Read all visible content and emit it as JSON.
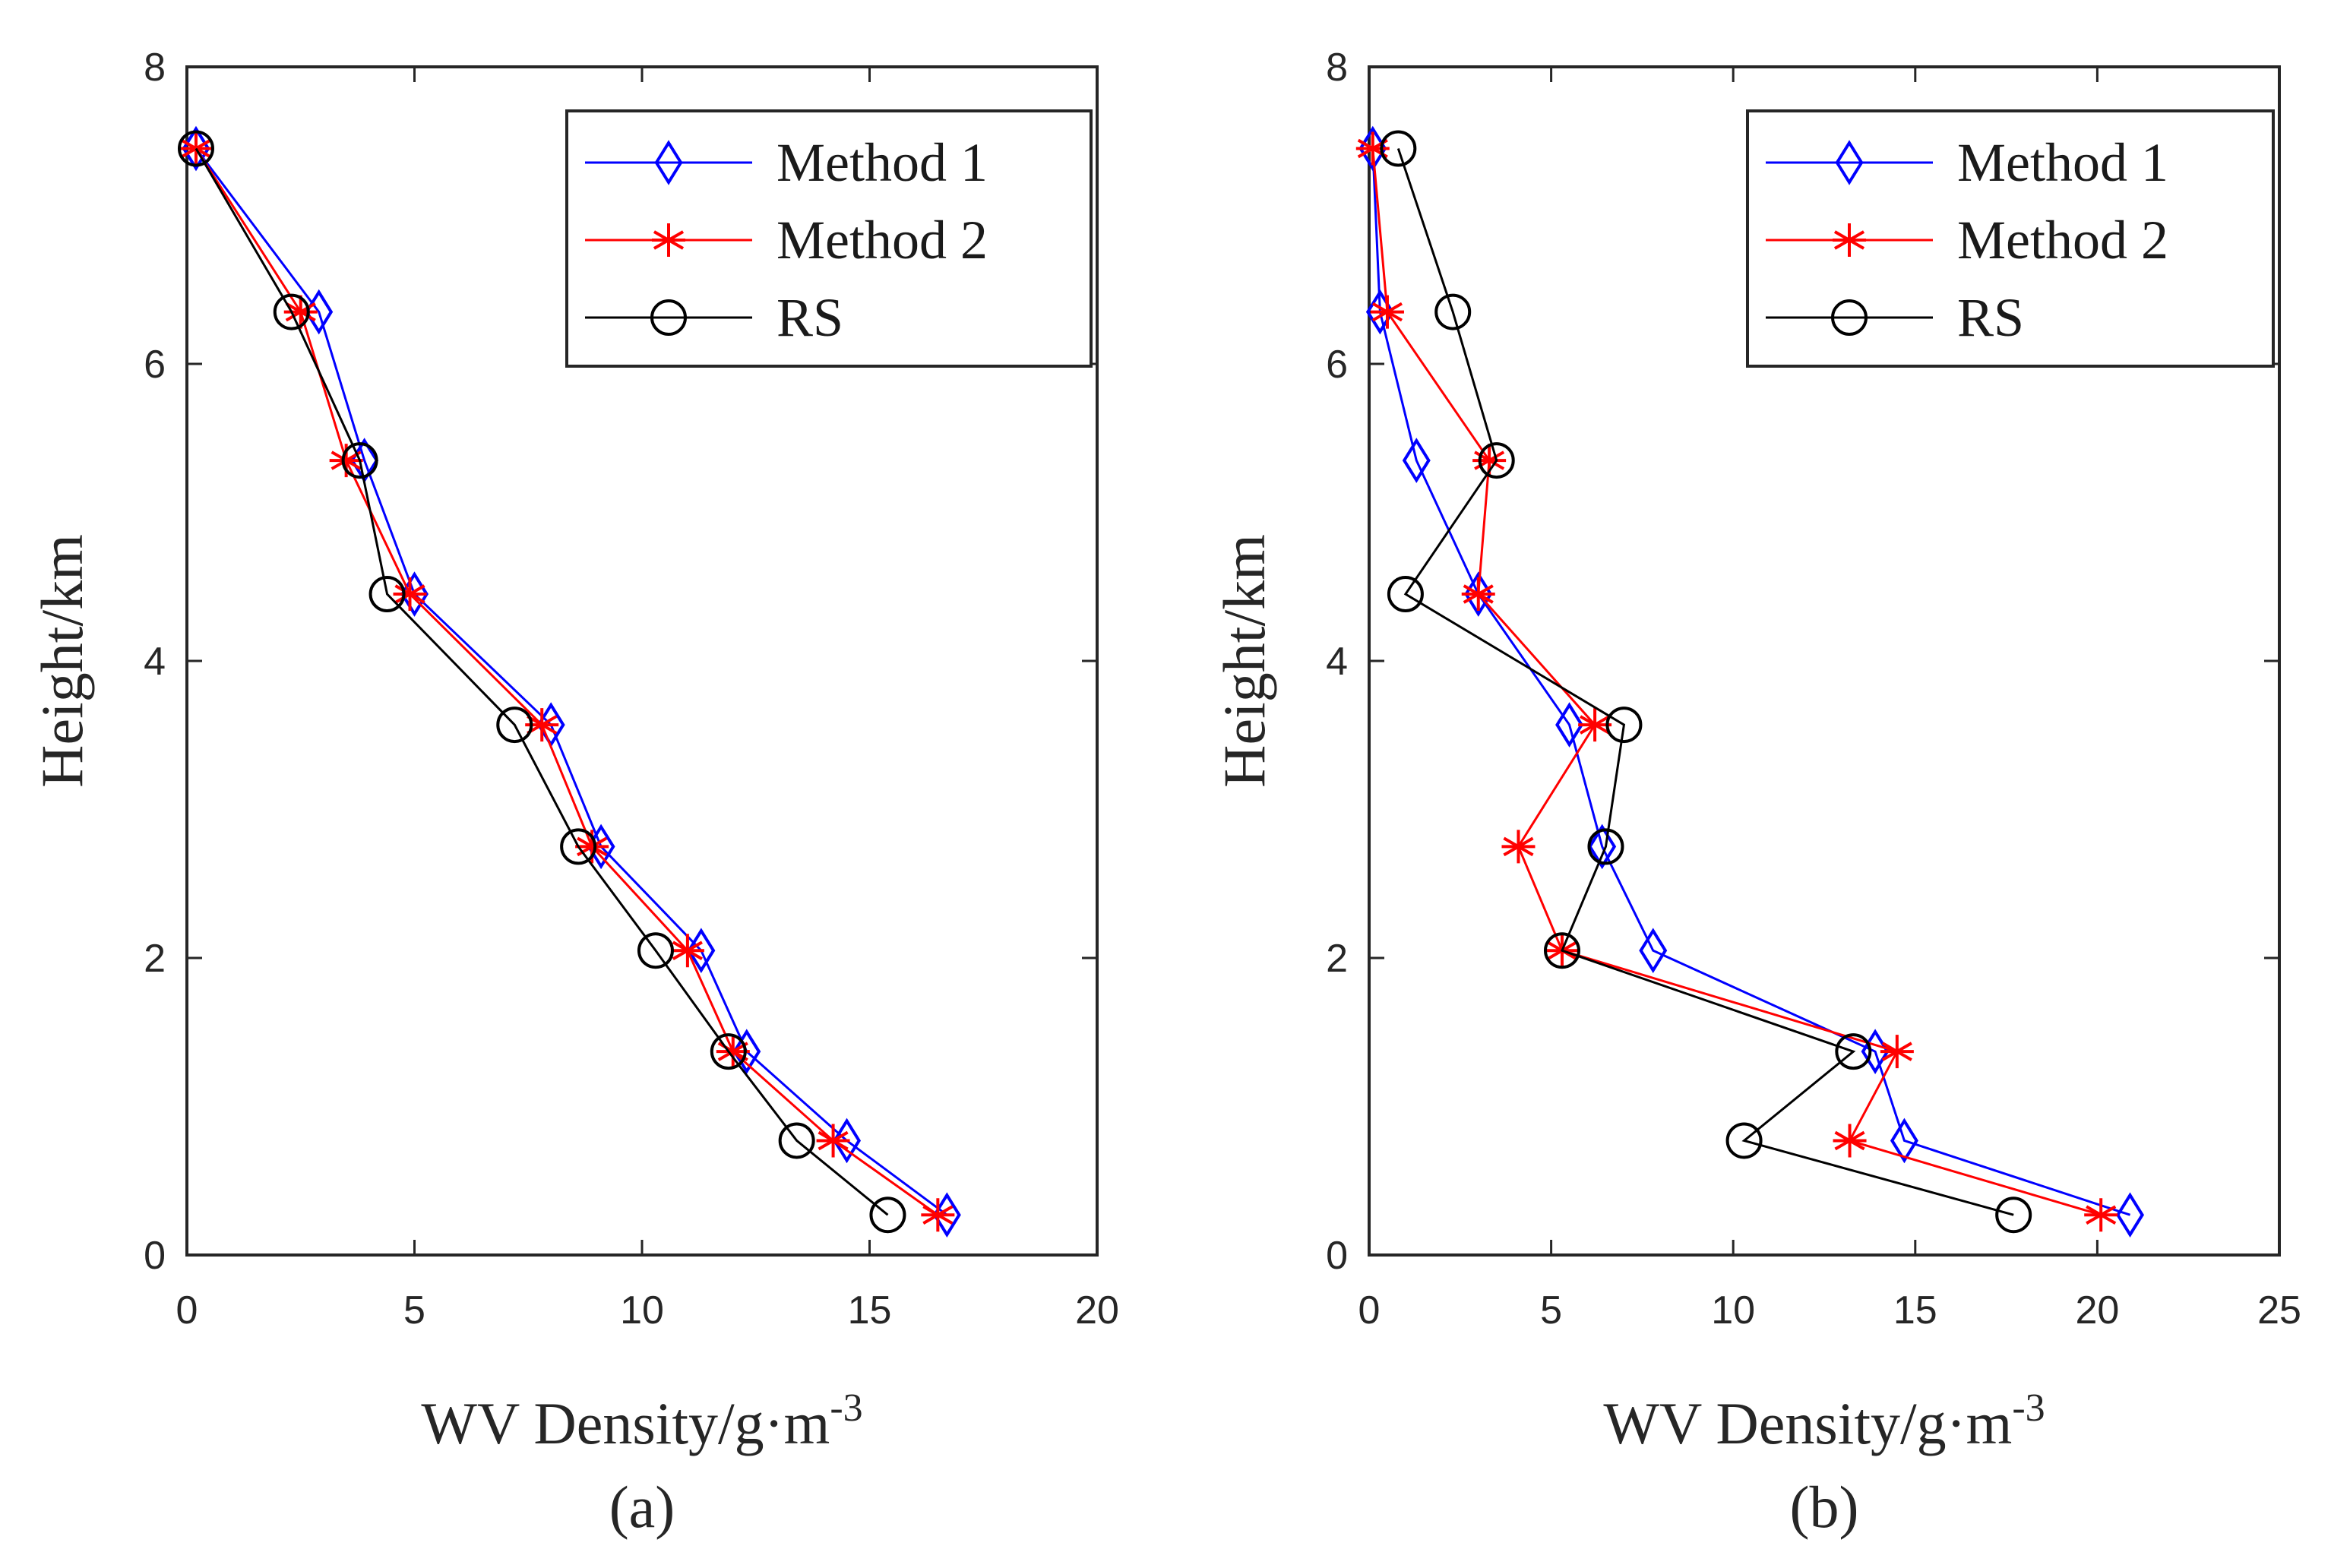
{
  "colors": {
    "method1": "#0000ff",
    "method2": "#ff0000",
    "rs": "#000000",
    "axis": "#262626",
    "legend_border": "#262626"
  },
  "chart_data": [
    {
      "type": "line",
      "caption": "(a)",
      "xlabel": "WV Density/g·m",
      "xlabel_sup": "-3",
      "ylabel": "Height/km",
      "xlim": [
        0,
        20
      ],
      "ylim": [
        0,
        8
      ],
      "xticks": [
        "0",
        "5",
        "10",
        "15",
        "20"
      ],
      "yticks": [
        "0",
        "2",
        "4",
        "6",
        "8"
      ],
      "legend_position": "top-right",
      "series": [
        {
          "name": "Method 1",
          "marker": "diamond",
          "color_key": "method1",
          "x": [
            16.7,
            14.5,
            12.3,
            11.3,
            9.1,
            8.0,
            5.0,
            3.9,
            2.9,
            0.2
          ],
          "y": [
            0.27,
            0.77,
            1.37,
            2.05,
            2.75,
            3.57,
            4.45,
            5.35,
            6.35,
            7.45
          ]
        },
        {
          "name": "Method 2",
          "marker": "asterisk",
          "color_key": "method2",
          "x": [
            16.5,
            14.2,
            12.0,
            11.0,
            8.9,
            7.8,
            4.9,
            3.5,
            2.5,
            0.2
          ],
          "y": [
            0.27,
            0.77,
            1.37,
            2.05,
            2.75,
            3.57,
            4.45,
            5.35,
            6.35,
            7.45
          ]
        },
        {
          "name": "RS",
          "marker": "circle",
          "color_key": "rs",
          "x": [
            15.4,
            13.4,
            11.9,
            10.3,
            8.6,
            7.2,
            4.4,
            3.8,
            2.3,
            0.2
          ],
          "y": [
            0.27,
            0.77,
            1.37,
            2.05,
            2.75,
            3.57,
            4.45,
            5.35,
            6.35,
            7.45
          ]
        }
      ]
    },
    {
      "type": "line",
      "caption": "(b)",
      "xlabel": "WV Density/g·m",
      "xlabel_sup": "-3",
      "ylabel": "Height/km",
      "xlim": [
        0,
        25
      ],
      "ylim": [
        0,
        8
      ],
      "xticks": [
        "0",
        "5",
        "10",
        "15",
        "20",
        "25"
      ],
      "yticks": [
        "0",
        "2",
        "4",
        "6",
        "8"
      ],
      "legend_position": "top-right",
      "series": [
        {
          "name": "Method 1",
          "marker": "diamond",
          "color_key": "method1",
          "x": [
            20.9,
            14.7,
            13.9,
            7.8,
            6.4,
            5.5,
            3.0,
            1.3,
            0.3,
            0.1
          ],
          "y": [
            0.27,
            0.77,
            1.37,
            2.05,
            2.75,
            3.57,
            4.45,
            5.35,
            6.35,
            7.45
          ]
        },
        {
          "name": "Method 2",
          "marker": "asterisk",
          "color_key": "method2",
          "x": [
            20.1,
            13.2,
            14.5,
            5.3,
            4.1,
            6.2,
            3.0,
            3.3,
            0.5,
            0.1
          ],
          "y": [
            0.27,
            0.77,
            1.37,
            2.05,
            2.75,
            3.57,
            4.45,
            5.35,
            6.35,
            7.45
          ]
        },
        {
          "name": "RS",
          "marker": "circle",
          "color_key": "rs",
          "x": [
            17.7,
            10.3,
            13.3,
            5.3,
            6.5,
            7.0,
            1.0,
            3.5,
            2.3,
            0.8
          ],
          "y": [
            0.27,
            0.77,
            1.37,
            2.05,
            2.75,
            3.57,
            4.45,
            5.35,
            6.35,
            7.45
          ]
        }
      ]
    }
  ]
}
